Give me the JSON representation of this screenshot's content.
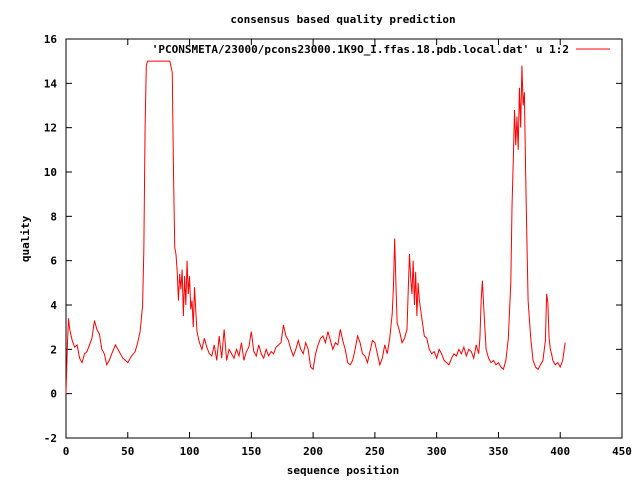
{
  "chart_data": {
    "type": "line",
    "title": "consensus based quality prediction",
    "xlabel": "sequence position",
    "ylabel": "quality",
    "xlim": [
      0,
      450
    ],
    "ylim": [
      -2,
      16
    ],
    "xticks": [
      0,
      50,
      100,
      150,
      200,
      250,
      300,
      350,
      400,
      450
    ],
    "yticks": [
      -2,
      0,
      2,
      4,
      6,
      8,
      10,
      12,
      14,
      16
    ],
    "grid": false,
    "legend_position": "top-right",
    "series": [
      {
        "name": "'PCONSMETA/23000/pcons23000.1K9O_I.ffas.18.pdb.local.dat' u 1:2",
        "color": "#ff0000",
        "x": [
          0,
          1,
          2,
          3,
          5,
          7,
          9,
          11,
          13,
          15,
          17,
          19,
          21,
          23,
          25,
          27,
          29,
          31,
          33,
          35,
          37,
          40,
          43,
          46,
          48,
          50,
          53,
          56,
          58,
          60,
          62,
          63,
          64,
          65,
          66,
          68,
          72,
          76,
          80,
          84,
          86,
          87,
          88,
          89,
          90,
          91,
          92,
          93,
          94,
          95,
          96,
          97,
          98,
          99,
          100,
          101,
          102,
          103,
          104,
          106,
          108,
          110,
          112,
          114,
          116,
          118,
          120,
          122,
          124,
          126,
          128,
          130,
          132,
          134,
          136,
          138,
          140,
          142,
          144,
          146,
          148,
          150,
          152,
          154,
          156,
          158,
          160,
          162,
          164,
          166,
          168,
          170,
          172,
          174,
          176,
          178,
          180,
          182,
          184,
          186,
          188,
          190,
          192,
          194,
          196,
          198,
          200,
          202,
          204,
          206,
          208,
          210,
          212,
          214,
          216,
          218,
          220,
          222,
          224,
          226,
          228,
          230,
          232,
          234,
          236,
          238,
          240,
          242,
          244,
          246,
          248,
          250,
          252,
          254,
          256,
          258,
          260,
          262,
          264,
          265,
          266,
          267,
          268,
          270,
          272,
          274,
          276,
          277,
          278,
          279,
          280,
          281,
          282,
          283,
          284,
          285,
          286,
          288,
          290,
          292,
          294,
          296,
          298,
          300,
          302,
          304,
          306,
          308,
          310,
          312,
          314,
          316,
          318,
          320,
          322,
          324,
          326,
          328,
          330,
          332,
          334,
          335,
          336,
          337,
          338,
          340,
          342,
          344,
          346,
          348,
          350,
          352,
          354,
          356,
          358,
          360,
          361,
          362,
          363,
          364,
          365,
          366,
          367,
          368,
          369,
          370,
          371,
          372,
          373,
          374,
          376,
          378,
          380,
          382,
          384,
          386,
          388,
          389,
          390,
          391,
          392,
          393,
          394,
          396,
          398,
          400,
          402,
          404
        ],
        "y": [
          0,
          2.0,
          3.4,
          2.9,
          2.4,
          2.1,
          2.2,
          1.6,
          1.4,
          1.8,
          1.9,
          2.2,
          2.5,
          3.3,
          2.9,
          2.7,
          2.0,
          1.8,
          1.3,
          1.5,
          1.8,
          2.2,
          1.9,
          1.6,
          1.5,
          1.4,
          1.7,
          1.9,
          2.3,
          2.8,
          4.0,
          6.5,
          12.0,
          14.8,
          15.0,
          15.0,
          15.0,
          15.0,
          15.0,
          15.0,
          14.5,
          10.0,
          6.6,
          6.3,
          5.5,
          4.2,
          5.4,
          4.7,
          5.6,
          3.5,
          5.3,
          4.0,
          6.0,
          4.5,
          5.3,
          3.8,
          4.2,
          3.0,
          4.8,
          2.8,
          2.3,
          2.0,
          2.5,
          2.1,
          1.8,
          1.7,
          2.2,
          1.5,
          2.6,
          1.6,
          2.9,
          1.5,
          2.0,
          1.8,
          1.6,
          2.0,
          1.7,
          2.3,
          1.5,
          1.9,
          2.1,
          2.8,
          1.9,
          1.7,
          2.2,
          1.8,
          1.6,
          2.0,
          1.7,
          1.9,
          1.8,
          2.1,
          2.2,
          2.3,
          3.1,
          2.6,
          2.4,
          2.0,
          1.7,
          2.0,
          2.4,
          2.0,
          1.8,
          2.3,
          2.0,
          1.2,
          1.1,
          1.8,
          2.2,
          2.5,
          2.6,
          2.3,
          2.8,
          2.4,
          2.0,
          2.3,
          2.2,
          2.9,
          2.4,
          2.0,
          1.4,
          1.3,
          1.5,
          2.0,
          2.6,
          2.3,
          1.8,
          1.7,
          1.4,
          1.9,
          2.4,
          2.3,
          1.8,
          1.3,
          1.6,
          2.2,
          1.8,
          2.5,
          3.6,
          4.8,
          7.0,
          5.0,
          3.2,
          2.8,
          2.3,
          2.5,
          2.9,
          4.7,
          6.3,
          5.2,
          4.5,
          6.0,
          4.0,
          5.5,
          3.5,
          5.0,
          4.2,
          3.4,
          2.6,
          2.5,
          2.0,
          1.8,
          1.9,
          1.6,
          2.0,
          1.8,
          1.5,
          1.4,
          1.3,
          1.6,
          1.8,
          1.7,
          2.0,
          1.8,
          2.1,
          1.7,
          2.0,
          1.9,
          1.6,
          2.2,
          1.8,
          2.5,
          4.2,
          5.1,
          4.0,
          2.0,
          1.6,
          1.4,
          1.5,
          1.3,
          1.4,
          1.2,
          1.1,
          1.5,
          2.5,
          5.0,
          8.5,
          10.5,
          12.8,
          11.2,
          12.5,
          11.0,
          13.8,
          12.0,
          14.8,
          13.0,
          13.6,
          10.0,
          7.0,
          4.2,
          2.6,
          1.5,
          1.2,
          1.1,
          1.3,
          1.5,
          2.4,
          4.5,
          4.1,
          2.5,
          2.0,
          1.8,
          1.5,
          1.3,
          1.4,
          1.2,
          1.5,
          2.3
        ]
      }
    ]
  }
}
